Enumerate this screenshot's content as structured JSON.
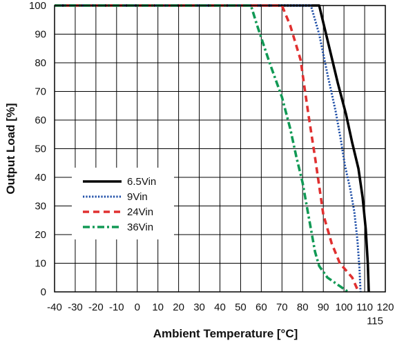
{
  "chart_data": {
    "type": "line",
    "title": "",
    "xlabel": "Ambient Temperature [°C]",
    "ylabel": "Output Load [%]",
    "xlim": [
      -40,
      120
    ],
    "ylim": [
      0,
      100
    ],
    "grid": true,
    "legend_position": "center-left",
    "x_ticks": [
      -40,
      -30,
      -20,
      -10,
      0,
      10,
      20,
      30,
      40,
      50,
      60,
      70,
      80,
      90,
      100,
      110,
      120
    ],
    "x_tick_labels": [
      "-40",
      "-30",
      "-20",
      "-10",
      "0",
      "10",
      "20",
      "30",
      "40",
      "50",
      "60",
      "70",
      "80",
      "90",
      "100",
      "110",
      "120"
    ],
    "x_extra_labels": [
      {
        "x": 115,
        "label": "115"
      }
    ],
    "y_ticks": [
      0,
      10,
      20,
      30,
      40,
      50,
      60,
      70,
      80,
      90,
      100
    ],
    "y_tick_labels": [
      "0",
      "10",
      "20",
      "30",
      "40",
      "50",
      "60",
      "70",
      "80",
      "90",
      "100"
    ],
    "series": [
      {
        "name": "6.5Vin",
        "color": "#000000",
        "style": "solid",
        "x": [
          -40,
          88,
          93,
          97,
          101,
          104,
          107,
          109,
          110.5,
          111.5,
          112
        ],
        "y": [
          100,
          100,
          85,
          73,
          62,
          52,
          43,
          33,
          22,
          10,
          0
        ]
      },
      {
        "name": "9Vin",
        "color": "#1f4fa8",
        "style": "dotted",
        "x": [
          -40,
          84,
          88,
          92,
          96,
          98.5,
          100.5,
          103,
          105,
          106.5,
          107.5,
          108
        ],
        "y": [
          100,
          100,
          90,
          76,
          63,
          53,
          44,
          36,
          28,
          18,
          8,
          0
        ]
      },
      {
        "name": "24Vin",
        "color": "#e03030",
        "style": "dashed",
        "x": [
          -40,
          70,
          74,
          79,
          81,
          83,
          86,
          88,
          90,
          94,
          98,
          104,
          107
        ],
        "y": [
          100,
          100,
          93,
          81,
          71,
          61,
          47,
          37,
          27,
          17,
          10,
          5,
          0
        ]
      },
      {
        "name": "36Vin",
        "color": "#119955",
        "style": "dashdot",
        "x": [
          -40,
          55,
          58,
          64,
          70,
          74,
          77,
          80,
          82,
          84,
          86,
          88,
          92,
          98,
          102
        ],
        "y": [
          100,
          100,
          93,
          80,
          68,
          57,
          47,
          38,
          30,
          22,
          14,
          9,
          5,
          2,
          0
        ]
      }
    ]
  }
}
